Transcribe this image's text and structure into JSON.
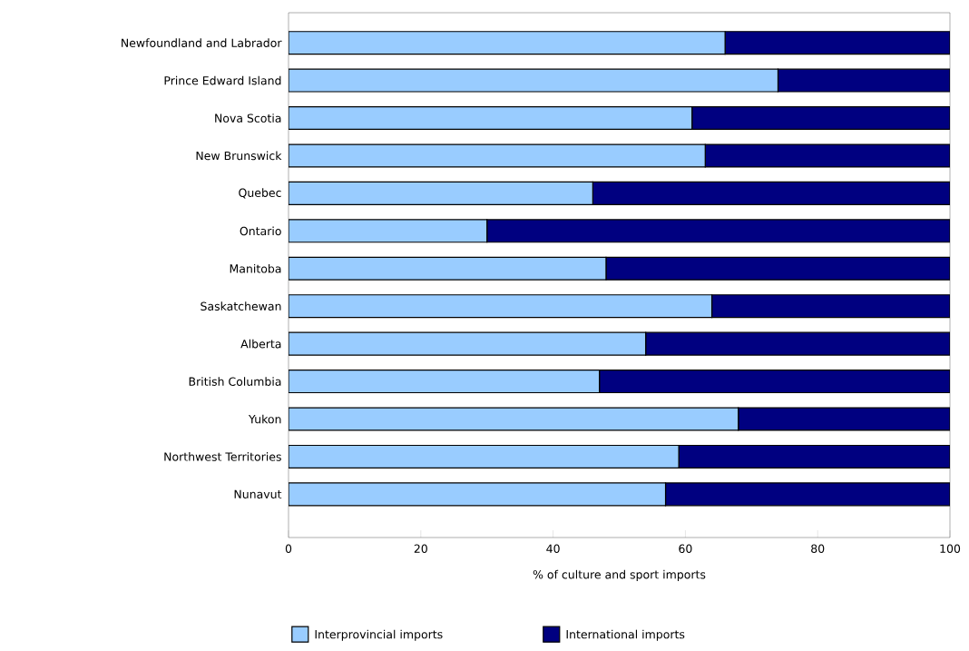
{
  "chart_data": {
    "type": "bar",
    "orientation": "horizontal",
    "stacked": true,
    "xlabel": "% of culture and sport imports",
    "categories": [
      "Newfoundland and Labrador",
      "Prince Edward Island",
      "Nova Scotia",
      "New Brunswick",
      "Quebec",
      "Ontario",
      "Manitoba",
      "Saskatchewan",
      "Alberta",
      "British Columbia",
      "Yukon",
      "Northwest Territories",
      "Nunavut"
    ],
    "series": [
      {
        "name": "Interprovincial imports",
        "color": "#99ccff",
        "values": [
          66,
          74,
          61,
          63,
          46,
          30,
          48,
          64,
          54,
          47,
          68,
          59,
          57
        ]
      },
      {
        "name": "International imports",
        "color": "#000080",
        "values": [
          34,
          26,
          39,
          37,
          54,
          70,
          52,
          36,
          46,
          53,
          32,
          41,
          43
        ]
      }
    ],
    "xlim": [
      0,
      100
    ],
    "xticks": [
      0,
      20,
      40,
      60,
      80,
      100
    ],
    "legend": "bottom"
  }
}
